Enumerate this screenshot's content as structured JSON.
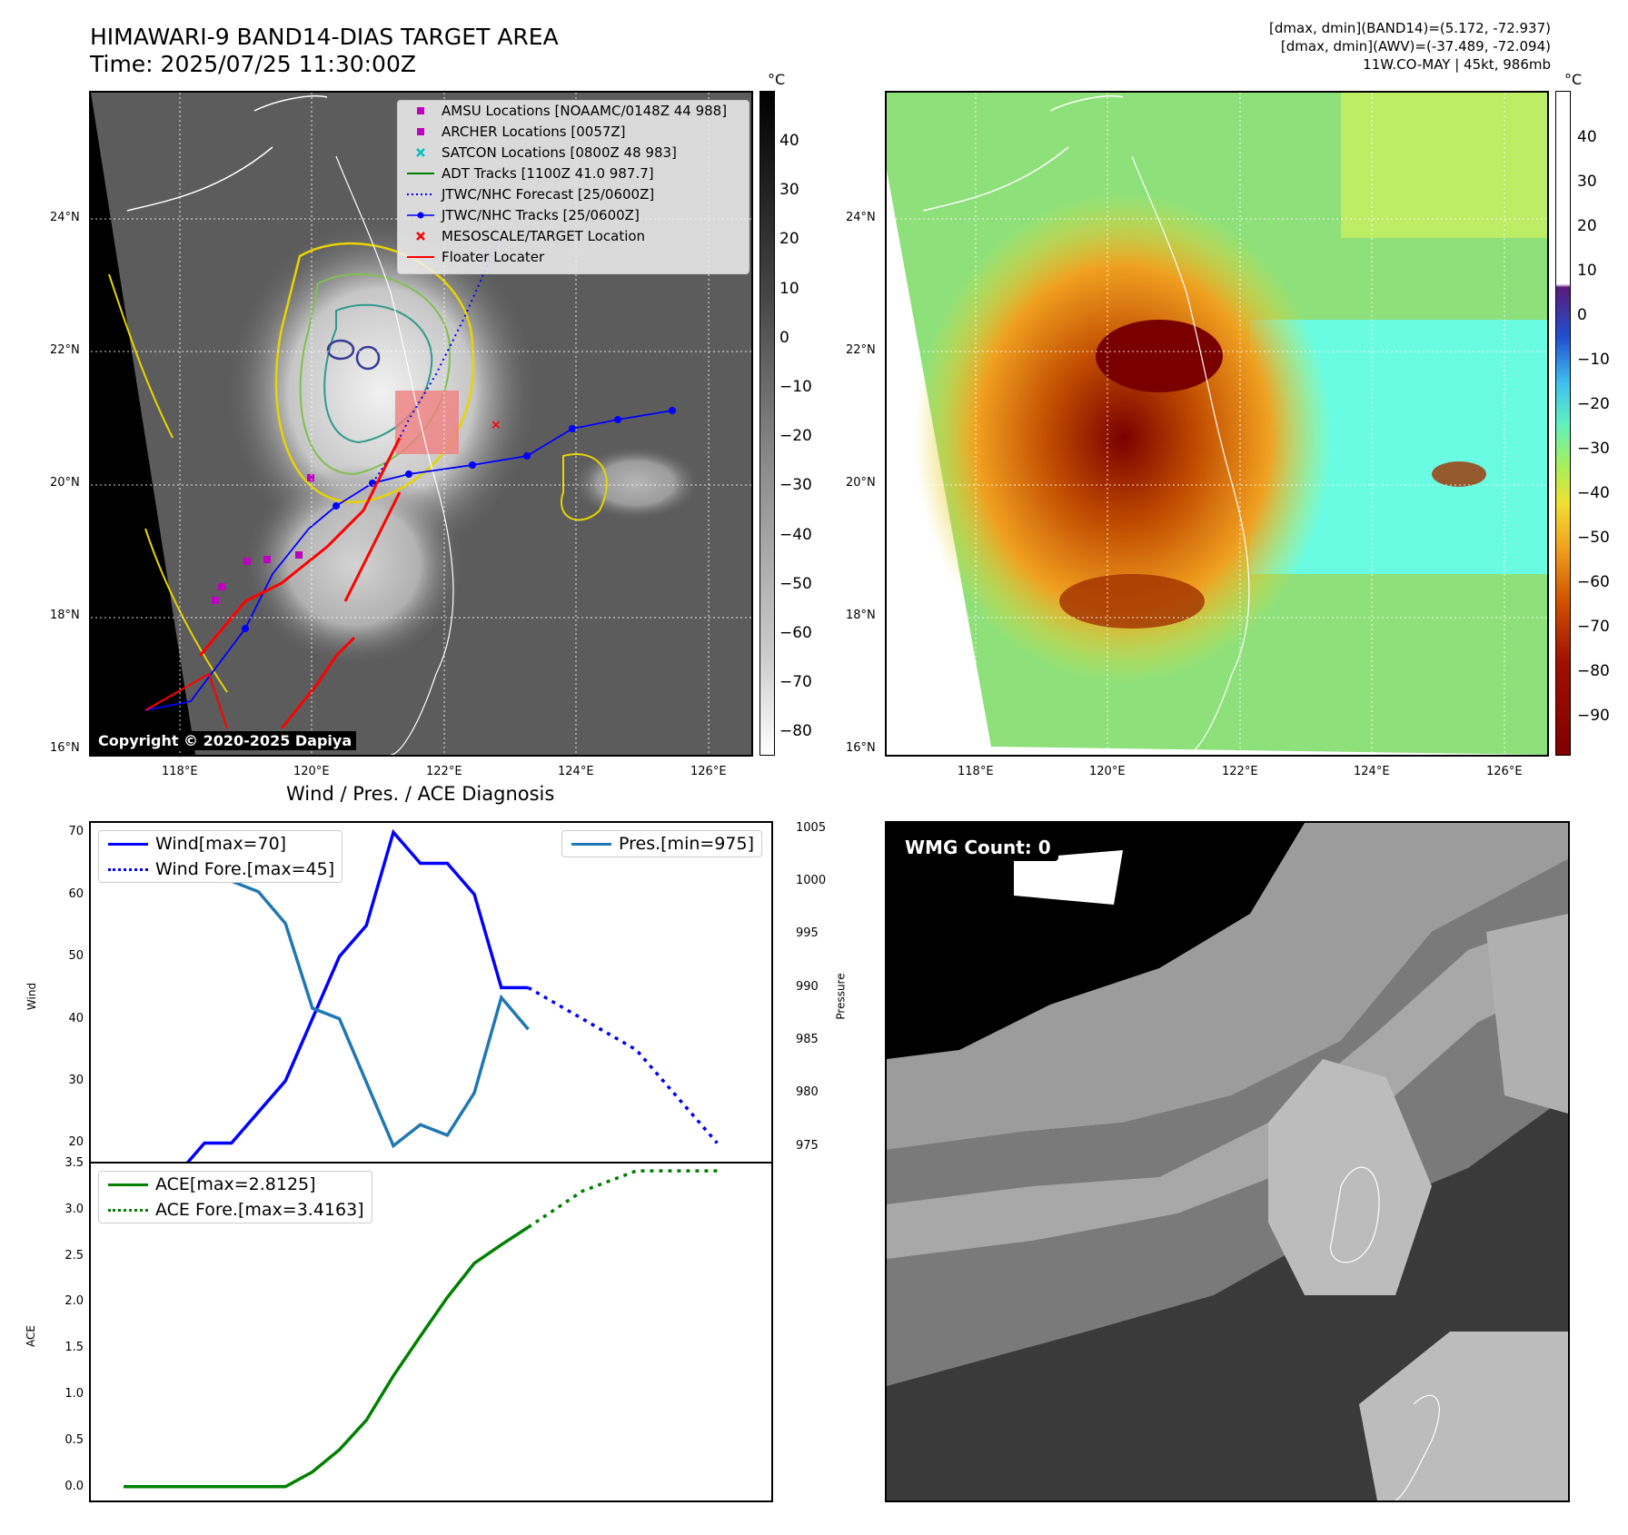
{
  "header": {
    "title_line1": "HIMAWARI-9 BAND14-DIAS TARGET AREA",
    "title_line2": "Time: 2025/07/25 11:30:00Z",
    "info_line1": "[dmax, dmin](BAND14)=(5.172, -72.937)",
    "info_line2": "[dmax, dmin](AWV)=(-37.489, -72.094)",
    "info_line3": "11W.CO-MAY | 45kt, 986mb"
  },
  "map_axes": {
    "lon_ticks": [
      "118°E",
      "120°E",
      "122°E",
      "124°E",
      "126°E"
    ],
    "lat_ticks": [
      "24°N",
      "22°N",
      "20°N",
      "18°N",
      "16°N"
    ]
  },
  "colorbar_left": {
    "unit": "°C",
    "ticks": [
      "40",
      "30",
      "20",
      "10",
      "0",
      "−10",
      "−20",
      "−30",
      "−40",
      "−50",
      "−60",
      "−70",
      "−80"
    ]
  },
  "colorbar_right": {
    "unit": "°C",
    "ticks": [
      "40",
      "30",
      "20",
      "10",
      "0",
      "−10",
      "−20",
      "−30",
      "−40",
      "−50",
      "−60",
      "−70",
      "−80",
      "−90"
    ]
  },
  "legend_map": [
    {
      "label": "AMSU Locations [NOAAMC/0148Z 44 988]",
      "kind": "square",
      "color": "#c000c0"
    },
    {
      "label": "ARCHER Locations [0057Z]",
      "kind": "square",
      "color": "#c000c0"
    },
    {
      "label": "SATCON Locations [0800Z 48 983]",
      "kind": "x",
      "color": "#00c0c0"
    },
    {
      "label": "ADT Tracks [1100Z 41.0 987.7]",
      "kind": "line",
      "color": "#008000"
    },
    {
      "label": "JTWC/NHC Forecast [25/0600Z]",
      "kind": "dotted",
      "color": "#0000ff"
    },
    {
      "label": "JTWC/NHC Tracks [25/0600Z]",
      "kind": "dotline",
      "color": "#0000ff"
    },
    {
      "label": "MESOSCALE/TARGET Location",
      "kind": "x",
      "color": "#ff0000"
    },
    {
      "label": "Floater Locater",
      "kind": "line",
      "color": "#ff0000"
    }
  ],
  "copyright": "Copyright © 2020-2025 Dapiya",
  "wmg_label": "WMG Count: 0",
  "diag_title": "Wind / Pres. / ACE Diagnosis",
  "wind_chart": {
    "ylabel": "Wind",
    "ylabel_right": "Pressure",
    "yticks": [
      "70",
      "60",
      "50",
      "40",
      "30",
      "20"
    ],
    "yticks_right": [
      "1005",
      "1000",
      "995",
      "990",
      "985",
      "980",
      "975"
    ],
    "legend_left": [
      "Wind[max=70]",
      "Wind Fore.[max=45]"
    ],
    "legend_right": "Pres.[min=975]"
  },
  "ace_chart": {
    "ylabel": "ACE",
    "yticks": [
      "3.5",
      "3.0",
      "2.5",
      "2.0",
      "1.5",
      "1.0",
      "0.5",
      "0.0"
    ],
    "legend": [
      "ACE[max=2.8125]",
      "ACE Fore.[max=3.4163]"
    ]
  },
  "chart_data": [
    {
      "type": "line",
      "title": "Wind / Pres. / ACE Diagnosis",
      "ylabel": "Wind",
      "ylim": [
        17,
        71.5
      ],
      "x": [
        0,
        1,
        2,
        3,
        4,
        5,
        6,
        7,
        8,
        9,
        10,
        11,
        12,
        13,
        14,
        15,
        16,
        17,
        18,
        19,
        20,
        21,
        22
      ],
      "series": [
        {
          "name": "Wind[max=70]",
          "color": "#0000ff",
          "style": "solid",
          "x": [
            0,
            2,
            3,
            4,
            6,
            8,
            9,
            10,
            11,
            12,
            13,
            14,
            15
          ],
          "values": [
            15,
            15,
            20,
            20,
            30,
            50,
            55,
            70,
            65,
            65,
            60,
            45,
            45
          ]
        },
        {
          "name": "Wind Fore.[max=45]",
          "color": "#0000ff",
          "style": "dotted",
          "x": [
            15,
            19,
            21,
            22
          ],
          "values": [
            45,
            35,
            25,
            20
          ]
        },
        {
          "name": "Pres.[min=975]",
          "color": "#1f77b4",
          "style": "solid",
          "axis": "right",
          "ylim": [
            973.5,
            1005.5
          ],
          "x": [
            0,
            1,
            2,
            3,
            4,
            5,
            6,
            7,
            8,
            9,
            10,
            11,
            12,
            13,
            14,
            15
          ],
          "values": [
            1004,
            1004,
            1004,
            1003,
            1000,
            999,
            996,
            988,
            987,
            981,
            975,
            977,
            976,
            980,
            989,
            986
          ]
        }
      ]
    },
    {
      "type": "line",
      "ylabel": "ACE",
      "ylim": [
        -0.15,
        3.5
      ],
      "series": [
        {
          "name": "ACE[max=2.8125]",
          "color": "#008000",
          "style": "solid",
          "x": [
            0,
            6,
            7,
            8,
            9,
            10,
            11,
            12,
            13,
            14,
            15
          ],
          "values": [
            0,
            0,
            0.16,
            0.4,
            0.72,
            1.2,
            1.63,
            2.05,
            2.42,
            2.62,
            2.81
          ]
        },
        {
          "name": "ACE Fore.[max=3.4163]",
          "color": "#008000",
          "style": "dotted",
          "x": [
            15,
            17,
            19,
            21,
            22
          ],
          "values": [
            2.81,
            3.2,
            3.42,
            3.42,
            3.42
          ]
        }
      ]
    }
  ]
}
